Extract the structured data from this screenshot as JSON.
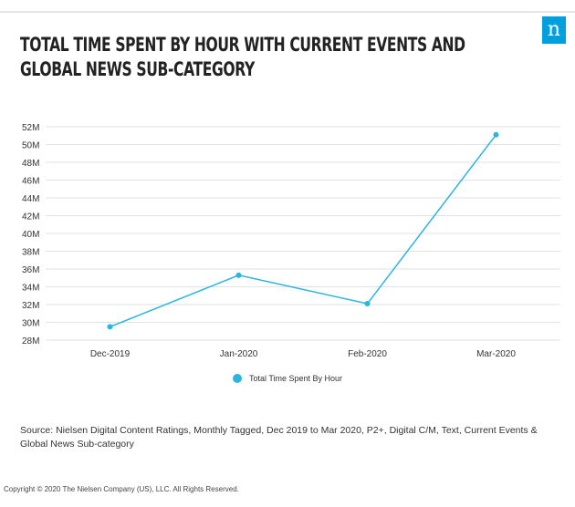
{
  "header": {
    "title": "TOTAL TIME SPENT BY HOUR WITH CURRENT EVENTS AND GLOBAL NEWS SUB-CATEGORY",
    "logo_letter": "n",
    "logo_color": "#00a0df"
  },
  "chart_data": {
    "type": "line",
    "categories": [
      "Dec-2019",
      "Jan-2020",
      "Feb-2020",
      "Mar-2020"
    ],
    "series": [
      {
        "name": "Total Time Spent By Hour",
        "values": [
          29.5,
          35.3,
          32.1,
          51.1
        ],
        "color": "#2ab5e0"
      }
    ],
    "y_ticks": [
      "28M",
      "30M",
      "32M",
      "34M",
      "36M",
      "38M",
      "40M",
      "42M",
      "44M",
      "46M",
      "48M",
      "50M",
      "52M"
    ],
    "ylim": [
      28,
      52
    ],
    "grid": true,
    "legend_position": "bottom-center"
  },
  "legend": {
    "label": "Total Time Spent By Hour"
  },
  "footer": {
    "source": "Source: Nielsen Digital Content Ratings, Monthly Tagged, Dec 2019 to Mar 2020, P2+, Digital C/M, Text, Current Events & Global News Sub-category",
    "copyright": "Copyright © 2020 The Nielsen Company (US), LLC. All Rights Reserved."
  }
}
